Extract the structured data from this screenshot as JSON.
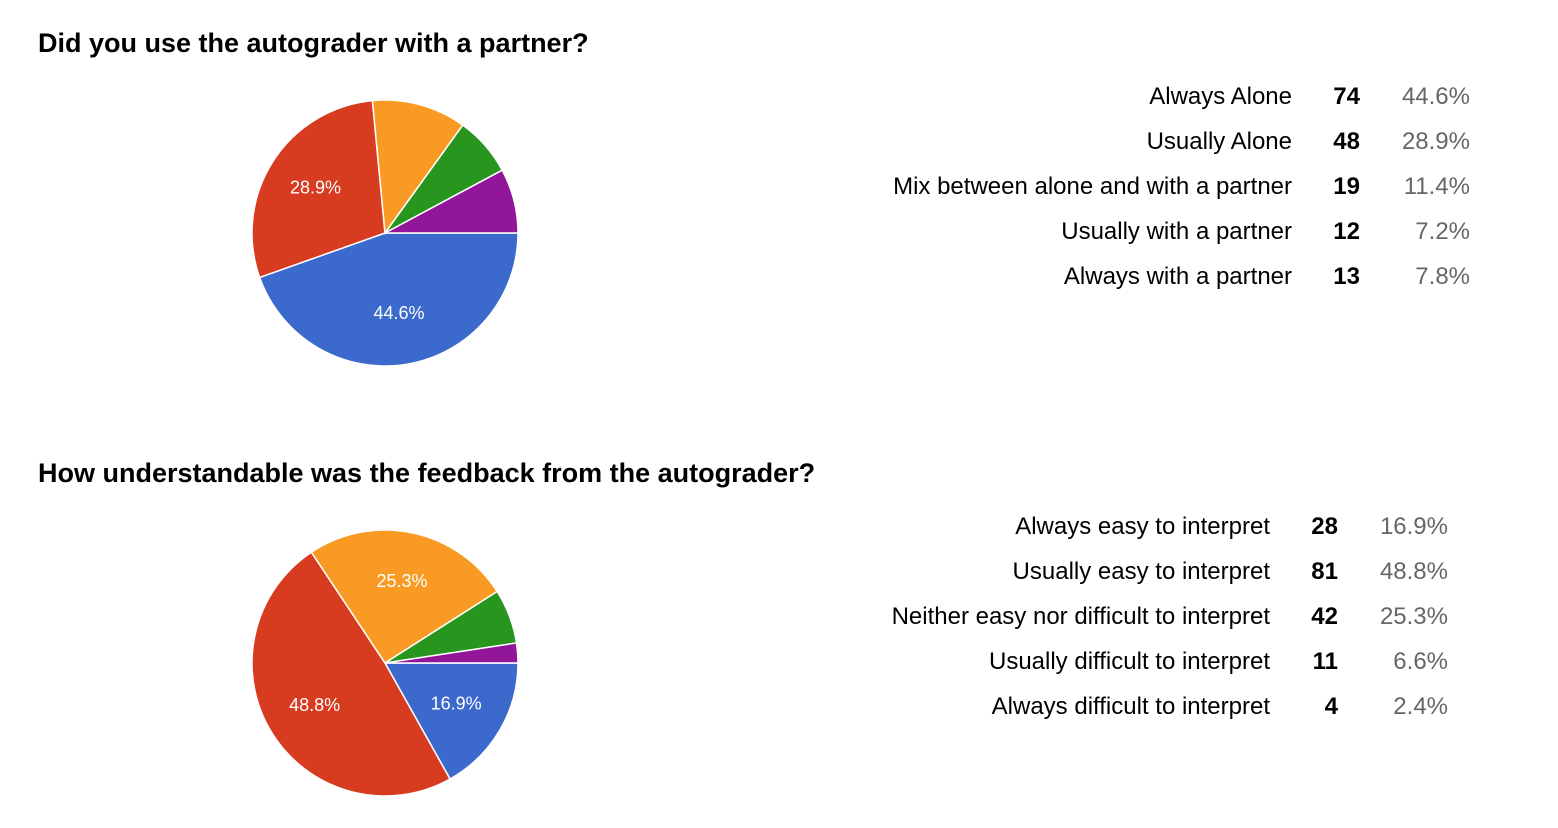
{
  "colors": {
    "series": [
      "#3b69cc",
      "#d73b20",
      "#f89a23",
      "#27951e",
      "#911699"
    ]
  },
  "chart_data": [
    {
      "type": "pie",
      "title": "Did you use the autograder with a partner?",
      "categories": [
        "Always Alone",
        "Usually Alone",
        "Mix between alone and with a partner",
        "Usually with a partner",
        "Always with a partner"
      ],
      "counts": [
        "74",
        "48",
        "19",
        "12",
        "13"
      ],
      "percents": [
        "44.6%",
        "28.9%",
        "11.4%",
        "7.2%",
        "7.8%"
      ],
      "values": [
        74,
        48,
        19,
        12,
        13
      ],
      "slice_labels": [
        "44.6%",
        "28.9%",
        "",
        "",
        ""
      ]
    },
    {
      "type": "pie",
      "title": "How understandable was the feedback from the autograder?",
      "categories": [
        "Always easy to interpret",
        "Usually easy to interpret",
        "Neither easy nor difficult to interpret",
        "Usually difficult to interpret",
        "Always difficult to interpret"
      ],
      "counts": [
        "28",
        "81",
        "42",
        "11",
        "4"
      ],
      "percents": [
        "16.9%",
        "48.8%",
        "25.3%",
        "6.6%",
        "2.4%"
      ],
      "values": [
        28,
        81,
        42,
        11,
        4
      ],
      "slice_labels": [
        "16.9%",
        "48.8%",
        "25.3%",
        "",
        ""
      ]
    }
  ]
}
